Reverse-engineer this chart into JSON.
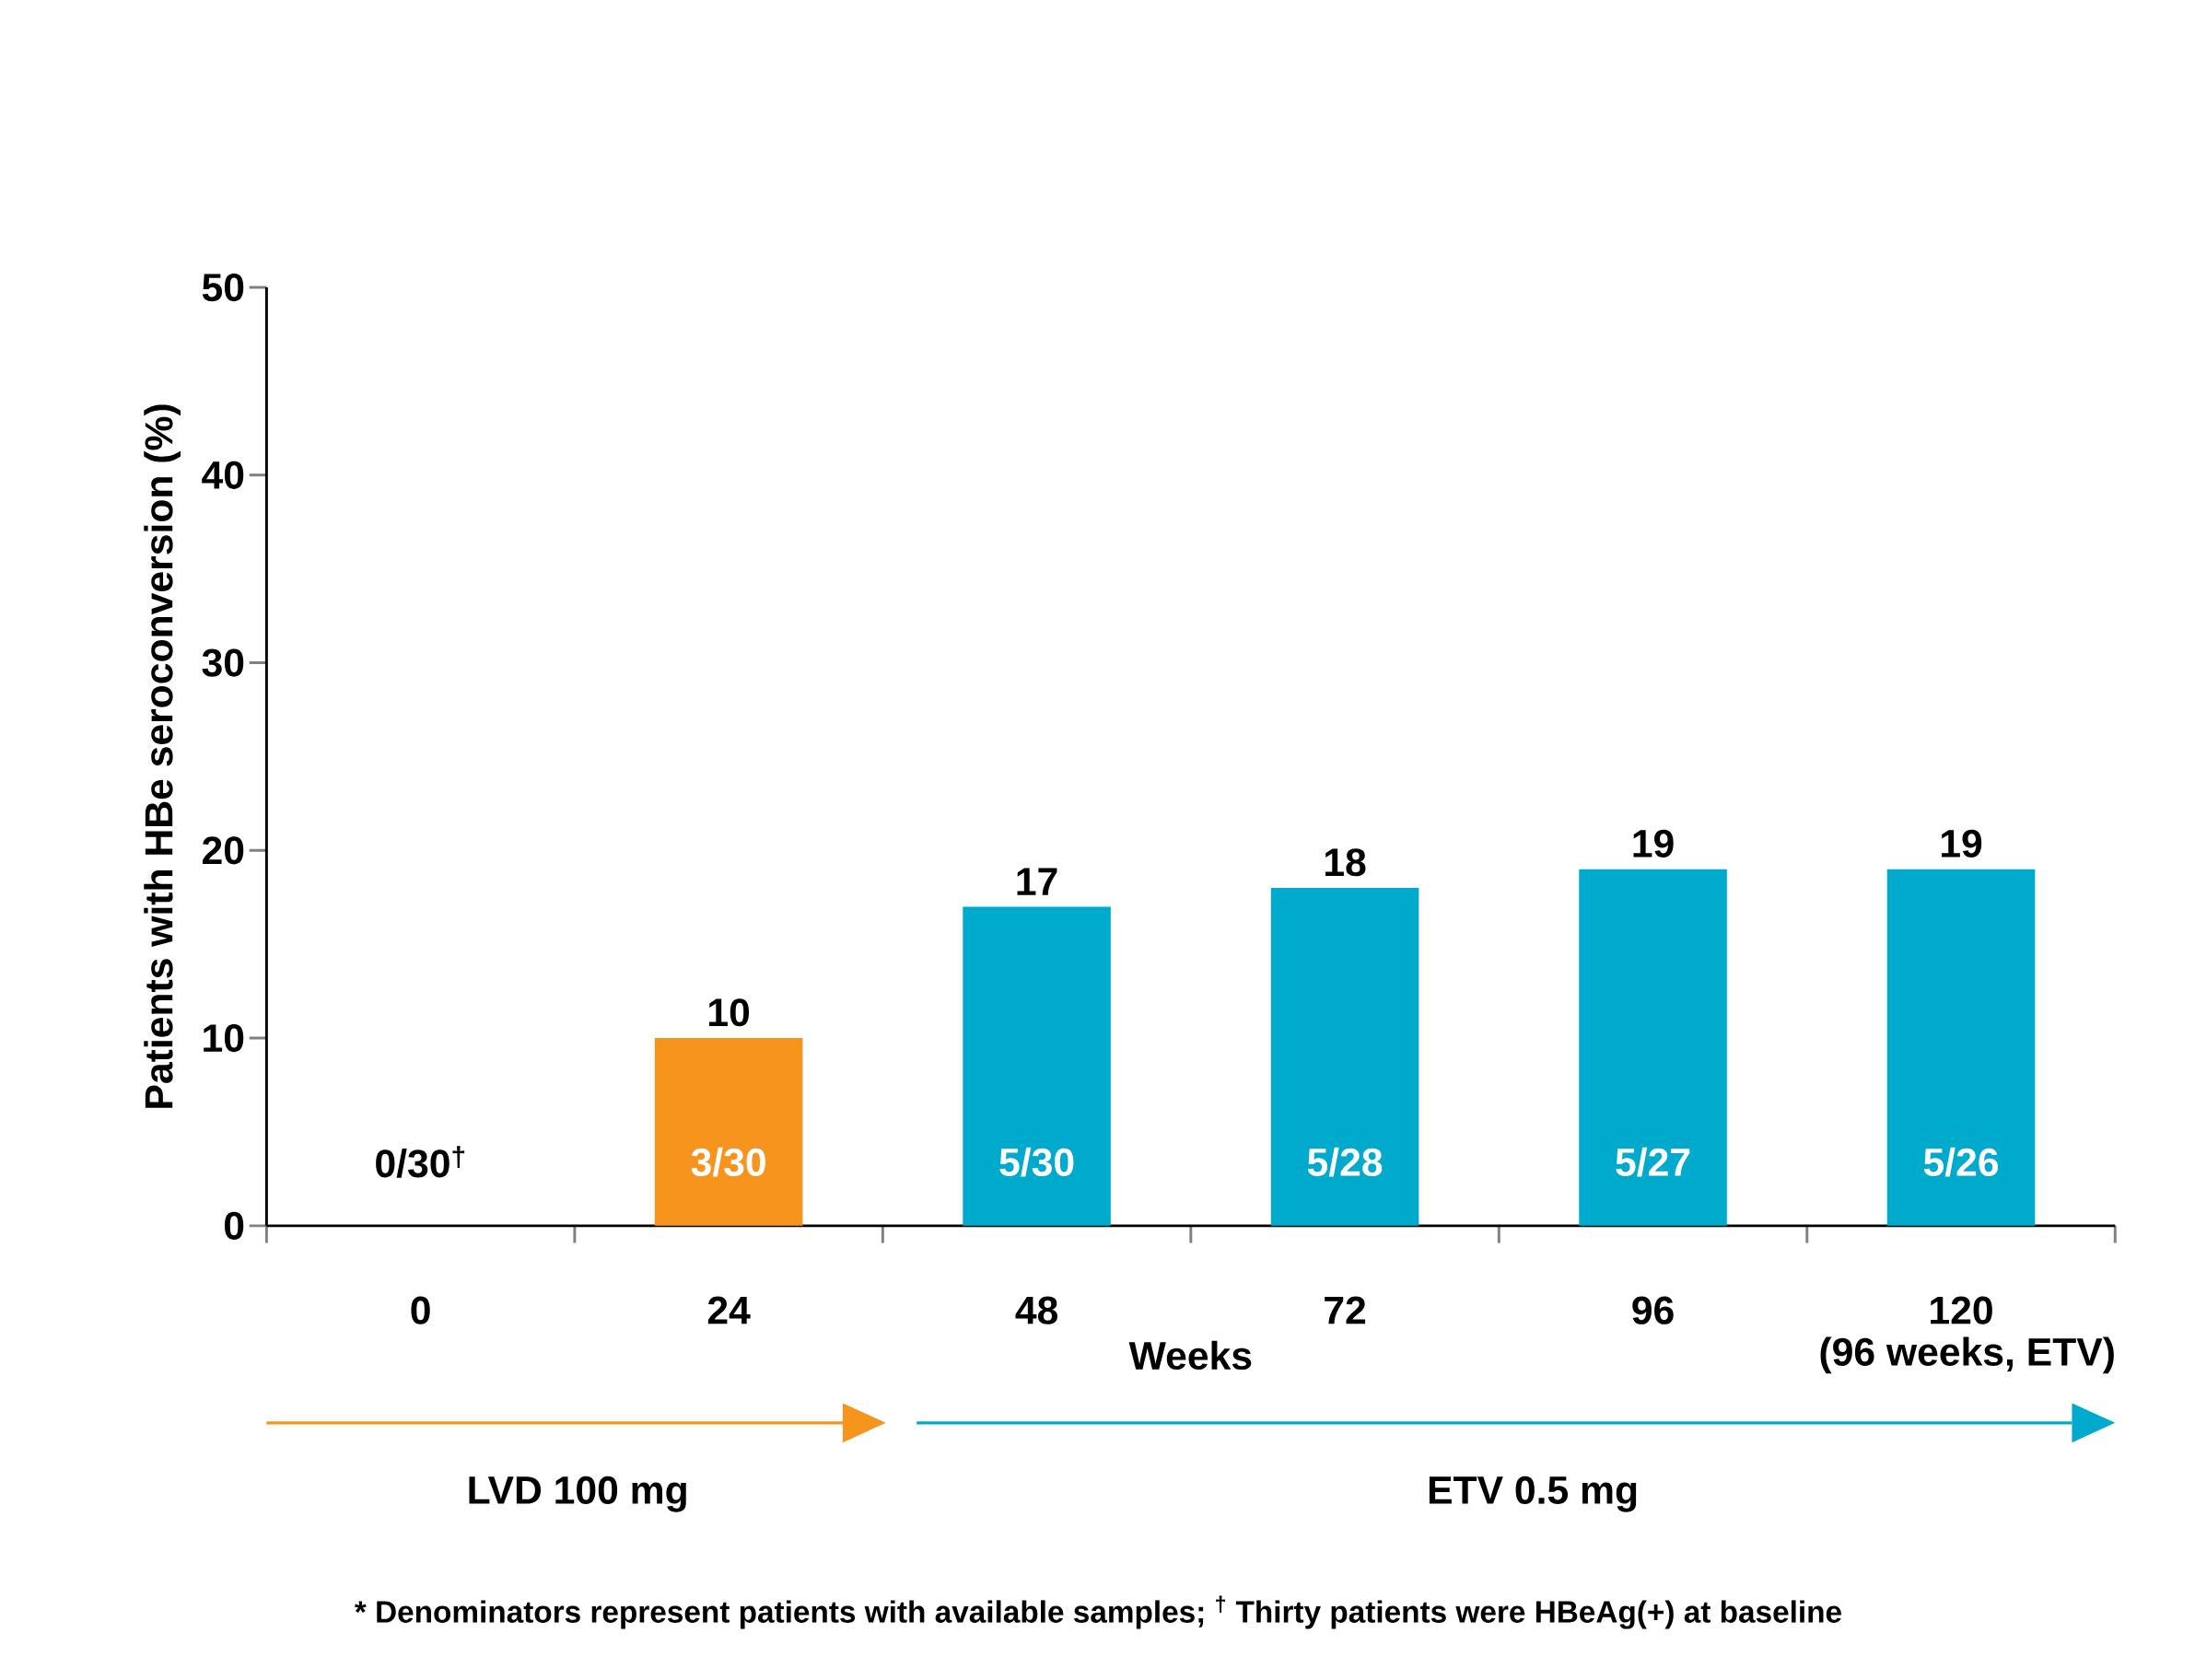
{
  "chart_data": {
    "type": "bar",
    "ylabel": "Patients with HBe seroconversion (%)",
    "xlabel": "Weeks",
    "categories": [
      "0",
      "24",
      "48",
      "72",
      "96",
      "120"
    ],
    "values": [
      0,
      10,
      17,
      18,
      19,
      19
    ],
    "colors": [
      "#00aacd",
      "#f7941d",
      "#00aacd",
      "#00aacd",
      "#00aacd",
      "#00aacd"
    ],
    "value_labels": [
      null,
      "10",
      "17",
      "18",
      "19",
      "19"
    ],
    "ylim": [
      0,
      50
    ],
    "yticks": [
      0,
      10,
      20,
      30,
      40,
      50
    ],
    "grid": false,
    "annotations": [
      "(96 weeks, ETV)",
      "LVD 100  mg",
      "ETV 0.5 mg",
      "* Denominators represent patients with available samples; $^{†}$ Thirty patients were HBeAg(+) at baseline",
      "0/30$^{†}$",
      "3/30",
      "5/30",
      "5/28",
      "5/27",
      "5/26"
    ]
  }
}
